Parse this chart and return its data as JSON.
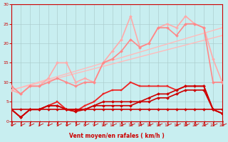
{
  "xlabel": "Vent moyen/en rafales ( km/h )",
  "xlim": [
    0,
    23
  ],
  "ylim": [
    0,
    30
  ],
  "xticks": [
    0,
    1,
    2,
    3,
    4,
    5,
    6,
    7,
    8,
    9,
    10,
    11,
    12,
    13,
    14,
    15,
    16,
    17,
    18,
    19,
    20,
    21,
    22,
    23
  ],
  "yticks": [
    0,
    5,
    10,
    15,
    20,
    25,
    30
  ],
  "bg_color": "#c8eef0",
  "grid_color": "#aacccc",
  "trend1": {
    "x": [
      0,
      23
    ],
    "y": [
      8,
      24
    ],
    "color": "#ffbbbb",
    "lw": 1.0
  },
  "trend2": {
    "x": [
      0,
      23
    ],
    "y": [
      8,
      22
    ],
    "color": "#ffbbbb",
    "lw": 1.0
  },
  "series": [
    {
      "x": [
        0,
        1,
        2,
        3,
        4,
        5,
        6,
        7,
        8,
        9,
        10,
        11,
        12,
        13,
        14,
        15,
        16,
        17,
        18,
        19,
        20,
        21,
        22,
        23
      ],
      "y": [
        8,
        7,
        9,
        9,
        11,
        15,
        15,
        10,
        11,
        10,
        15,
        18,
        21,
        27,
        19,
        20,
        24,
        25,
        24,
        27,
        25,
        24,
        16,
        10
      ],
      "color": "#ffaaaa",
      "lw": 1.2,
      "marker": "D",
      "ms": 2.0
    },
    {
      "x": [
        0,
        1,
        2,
        3,
        4,
        5,
        6,
        7,
        8,
        9,
        10,
        11,
        12,
        13,
        14,
        15,
        16,
        17,
        18,
        19,
        20,
        21,
        22,
        23
      ],
      "y": [
        9,
        7,
        9,
        9,
        10,
        11,
        10,
        9,
        10,
        10,
        15,
        16,
        18,
        21,
        19,
        20,
        24,
        24,
        22,
        25,
        25,
        24,
        10,
        10
      ],
      "color": "#ff8888",
      "lw": 1.2,
      "marker": "D",
      "ms": 2.0
    },
    {
      "x": [
        0,
        1,
        2,
        3,
        4,
        5,
        6,
        7,
        8,
        9,
        10,
        11,
        12,
        13,
        14,
        15,
        16,
        17,
        18,
        19,
        20,
        21,
        22,
        23
      ],
      "y": [
        3,
        1,
        3,
        3,
        4,
        5,
        3,
        2.5,
        4,
        5,
        7,
        8,
        8,
        10,
        9,
        9,
        9,
        9,
        8,
        9,
        9,
        9,
        3,
        2
      ],
      "color": "#ee2222",
      "lw": 1.3,
      "marker": "s",
      "ms": 2.0
    },
    {
      "x": [
        0,
        1,
        2,
        3,
        4,
        5,
        6,
        7,
        8,
        9,
        10,
        11,
        12,
        13,
        14,
        15,
        16,
        17,
        18,
        19,
        20,
        21,
        22,
        23
      ],
      "y": [
        3,
        1,
        3,
        3,
        4,
        4,
        3,
        2.5,
        3,
        4,
        5,
        5,
        5,
        5,
        5,
        6,
        7,
        7,
        8,
        9,
        9,
        9,
        3,
        2
      ],
      "color": "#cc0000",
      "lw": 1.2,
      "marker": "D",
      "ms": 2.0
    },
    {
      "x": [
        0,
        1,
        2,
        3,
        4,
        5,
        6,
        7,
        8,
        9,
        10,
        11,
        12,
        13,
        14,
        15,
        16,
        17,
        18,
        19,
        20,
        21,
        22,
        23
      ],
      "y": [
        3,
        1,
        3,
        3,
        4,
        4,
        3,
        3,
        3,
        4,
        4,
        4,
        4,
        4,
        5,
        5,
        6,
        6,
        7,
        8,
        8,
        8,
        3,
        2
      ],
      "color": "#cc0000",
      "lw": 1.2,
      "marker": "D",
      "ms": 2.0
    },
    {
      "x": [
        0,
        1,
        2,
        3,
        4,
        5,
        6,
        7,
        8,
        9,
        10,
        11,
        12,
        13,
        14,
        15,
        16,
        17,
        18,
        19,
        20,
        21,
        22,
        23
      ],
      "y": [
        3,
        3,
        3,
        3,
        3,
        3,
        3,
        3,
        3,
        3,
        3,
        3,
        3,
        3,
        3,
        3,
        3,
        3,
        3,
        3,
        3,
        3,
        3,
        3
      ],
      "color": "#cc0000",
      "lw": 1.2,
      "marker": "D",
      "ms": 2.0
    }
  ]
}
